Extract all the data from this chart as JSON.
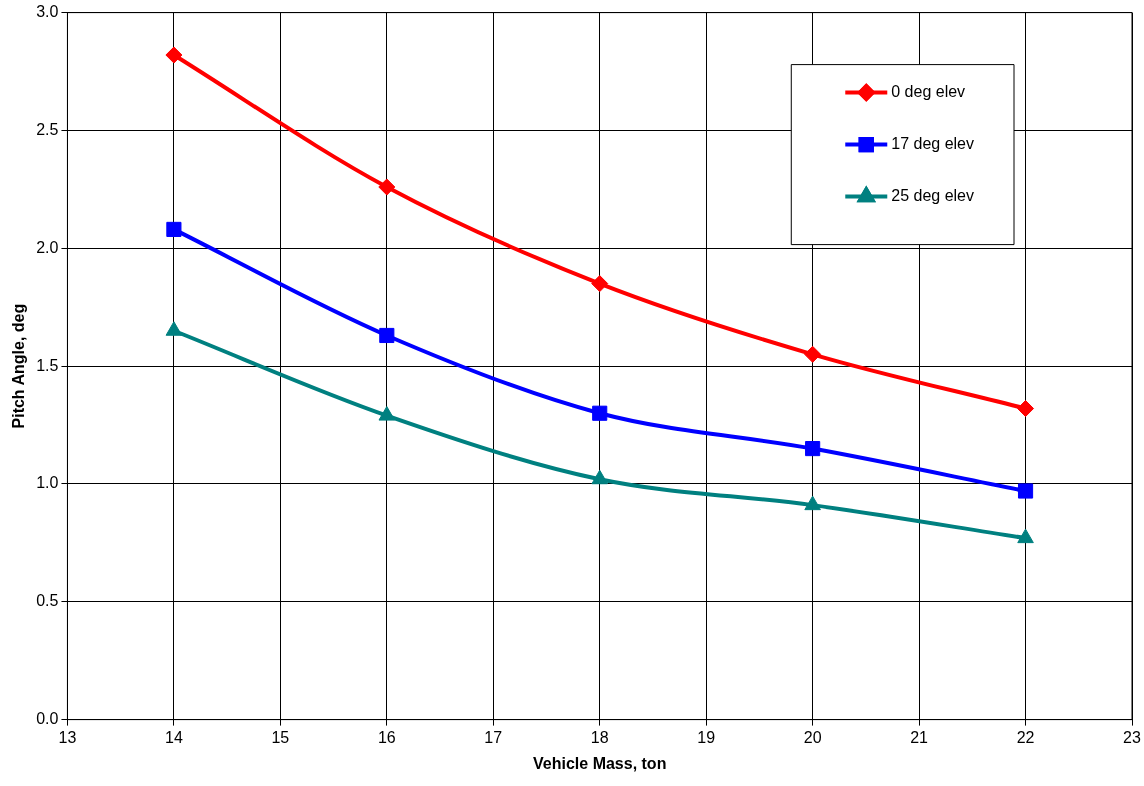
{
  "chart_data": {
    "type": "line",
    "xlabel": "Vehicle Mass, ton",
    "ylabel": "Pitch Angle, deg",
    "x": [
      14,
      16,
      18,
      20,
      22
    ],
    "series": [
      {
        "name": "0 deg elev",
        "color": "#ff0000",
        "marker": "diamond",
        "values": [
          2.82,
          2.26,
          1.85,
          1.55,
          1.32
        ]
      },
      {
        "name": "17 deg elev",
        "color": "#0000ff",
        "marker": "square",
        "values": [
          2.08,
          1.63,
          1.3,
          1.15,
          0.97
        ]
      },
      {
        "name": "25 deg elev",
        "color": "#008080",
        "marker": "triangle",
        "values": [
          1.65,
          1.29,
          1.02,
          0.91,
          0.77
        ]
      }
    ],
    "xlim": [
      13,
      23
    ],
    "xticks": [
      13,
      14,
      15,
      16,
      17,
      18,
      19,
      20,
      21,
      22,
      23
    ],
    "ylim": [
      0,
      3
    ],
    "yticks": [
      {
        "value": 0,
        "label": "0.0"
      },
      {
        "value": 0.5,
        "label": "0.5"
      },
      {
        "value": 1,
        "label": "1.0"
      },
      {
        "value": 1.5,
        "label": "1.5"
      },
      {
        "value": 2,
        "label": "2.0"
      },
      {
        "value": 2.5,
        "label": "2.5"
      },
      {
        "value": 3,
        "label": "3.0"
      }
    ],
    "grid": true,
    "legend": "top right",
    "line_style": "solid"
  }
}
